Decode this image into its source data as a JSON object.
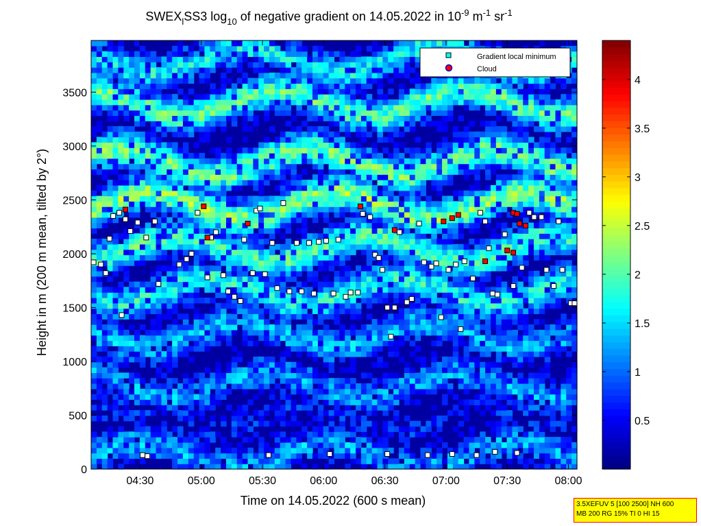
{
  "chart_data": {
    "type": "heatmap",
    "title": {
      "part1": "SWEX",
      "sub1": "l",
      "part2": "SS3 log",
      "sub2": "10",
      "part3": " of negative gradient on 14.05.2022 in 10",
      "sup1": "-9",
      "part4": " m",
      "sup2": "-1",
      "part5": " sr",
      "sup3": "-1"
    },
    "xlabel": "Time on 14.05.2022 (600 s mean)",
    "ylabel": "Height in m (200 m mean, tilted by 2°)",
    "x_ticks": [
      "04:30",
      "05:00",
      "05:30",
      "06:00",
      "06:30",
      "07:00",
      "07:30",
      "08:00"
    ],
    "x_tick_hours": [
      4.5,
      5.0,
      5.5,
      6.0,
      6.5,
      7.0,
      7.5,
      8.0
    ],
    "xlim_hours": [
      4.1,
      8.07
    ],
    "y_ticks": [
      0,
      500,
      1000,
      1500,
      2000,
      2500,
      3000,
      3500
    ],
    "ylim": [
      0,
      3980
    ],
    "colorbar": {
      "ticks": [
        0.5,
        1,
        1.5,
        2,
        2.5,
        3,
        3.5,
        4
      ],
      "tick_labels": [
        "0.5",
        "1",
        "1.5",
        "2",
        "2.5",
        "3",
        "3.5",
        "4"
      ],
      "range": [
        0,
        4.4
      ],
      "colormap": "jet"
    },
    "layers": [
      {
        "height": 130,
        "value": 1.25
      },
      {
        "height": 450,
        "value": 0.6
      },
      {
        "height": 780,
        "value": 1.2
      },
      {
        "height": 1250,
        "value": 1.3
      },
      {
        "height": 1650,
        "value": 1.7
      },
      {
        "height": 2050,
        "value": 1.9
      },
      {
        "height": 2450,
        "value": 2.2
      },
      {
        "height": 2850,
        "value": 2.1
      },
      {
        "height": 3400,
        "value": 2.0
      },
      {
        "height": 3800,
        "value": 1.6
      }
    ],
    "legend": {
      "position": "top-right",
      "entries": [
        "Gradient local minimum",
        "Cloud"
      ]
    },
    "series": [
      {
        "name": "Gradient local minimum",
        "points": [
          [
            4.12,
            1920
          ],
          [
            4.18,
            1900
          ],
          [
            4.22,
            1820
          ],
          [
            4.28,
            2350
          ],
          [
            4.33,
            2380
          ],
          [
            4.38,
            2320
          ],
          [
            4.42,
            2210
          ],
          [
            4.48,
            2290
          ],
          [
            4.55,
            2150
          ],
          [
            4.62,
            2300
          ],
          [
            4.65,
            1720
          ],
          [
            4.25,
            2140
          ],
          [
            4.35,
            1430
          ],
          [
            4.52,
            130
          ],
          [
            4.56,
            120
          ],
          [
            4.82,
            1900
          ],
          [
            4.88,
            1950
          ],
          [
            4.92,
            2000
          ],
          [
            4.97,
            2380
          ],
          [
            5.05,
            1780
          ],
          [
            5.08,
            2150
          ],
          [
            5.12,
            2200
          ],
          [
            5.18,
            1800
          ],
          [
            5.22,
            1650
          ],
          [
            5.27,
            1600
          ],
          [
            5.32,
            1560
          ],
          [
            5.35,
            2130
          ],
          [
            5.42,
            1820
          ],
          [
            5.45,
            2400
          ],
          [
            5.48,
            2420
          ],
          [
            5.52,
            1810
          ],
          [
            5.58,
            2100
          ],
          [
            5.62,
            1680
          ],
          [
            5.67,
            2470
          ],
          [
            5.72,
            1650
          ],
          [
            5.78,
            2100
          ],
          [
            5.82,
            1650
          ],
          [
            5.88,
            2100
          ],
          [
            5.92,
            1630
          ],
          [
            5.96,
            2110
          ],
          [
            6.02,
            2120
          ],
          [
            6.08,
            1630
          ],
          [
            6.12,
            2130
          ],
          [
            6.18,
            1600
          ],
          [
            6.22,
            1640
          ],
          [
            6.28,
            1640
          ],
          [
            6.32,
            2370
          ],
          [
            6.38,
            2340
          ],
          [
            6.42,
            1990
          ],
          [
            6.45,
            1960
          ],
          [
            6.48,
            1850
          ],
          [
            6.52,
            1500
          ],
          [
            6.55,
            1230
          ],
          [
            6.58,
            1500
          ],
          [
            6.62,
            2200
          ],
          [
            6.68,
            1550
          ],
          [
            6.72,
            1580
          ],
          [
            6.78,
            2280
          ],
          [
            6.82,
            1920
          ],
          [
            6.88,
            1880
          ],
          [
            6.92,
            1910
          ],
          [
            6.96,
            1410
          ],
          [
            7.02,
            1850
          ],
          [
            7.08,
            1900
          ],
          [
            7.12,
            1300
          ],
          [
            7.15,
            1930
          ],
          [
            7.22,
            1770
          ],
          [
            7.28,
            2380
          ],
          [
            7.32,
            2300
          ],
          [
            7.35,
            2050
          ],
          [
            7.38,
            1630
          ],
          [
            7.42,
            1620
          ],
          [
            7.48,
            2180
          ],
          [
            7.55,
            1700
          ],
          [
            7.62,
            1870
          ],
          [
            7.68,
            2380
          ],
          [
            7.72,
            2340
          ],
          [
            7.78,
            2340
          ],
          [
            7.82,
            1850
          ],
          [
            7.88,
            1700
          ],
          [
            7.92,
            2300
          ],
          [
            7.95,
            1850
          ],
          [
            8.02,
            1540
          ],
          [
            8.05,
            1540
          ],
          [
            5.55,
            130
          ],
          [
            6.05,
            140
          ],
          [
            6.52,
            140
          ],
          [
            6.85,
            130
          ],
          [
            7.05,
            140
          ],
          [
            7.25,
            130
          ],
          [
            7.4,
            160
          ],
          [
            7.58,
            150
          ]
        ]
      },
      {
        "name": "Cloud",
        "points": [
          [
            4.38,
            2410
          ],
          [
            5.02,
            2440
          ],
          [
            5.05,
            2150
          ],
          [
            5.38,
            2280
          ],
          [
            6.3,
            2440
          ],
          [
            6.58,
            2220
          ],
          [
            6.98,
            2300
          ],
          [
            7.05,
            2330
          ],
          [
            7.1,
            2360
          ],
          [
            7.55,
            2380
          ],
          [
            7.58,
            2370
          ],
          [
            7.6,
            2280
          ],
          [
            7.65,
            2260
          ],
          [
            7.32,
            1930
          ],
          [
            7.5,
            2030
          ],
          [
            7.55,
            2010
          ]
        ]
      }
    ]
  },
  "footer_info": {
    "line1": "3.5XEFUV 5 [100 2500] NH 600",
    "line2": "MB 200 RG 15% TI 0 HI 15"
  },
  "colors": {
    "low": "#00008f",
    "high": "#800000",
    "marker_face": "#ffffff",
    "cloud_face": "#ff0000",
    "info_box": "#ffff00"
  }
}
